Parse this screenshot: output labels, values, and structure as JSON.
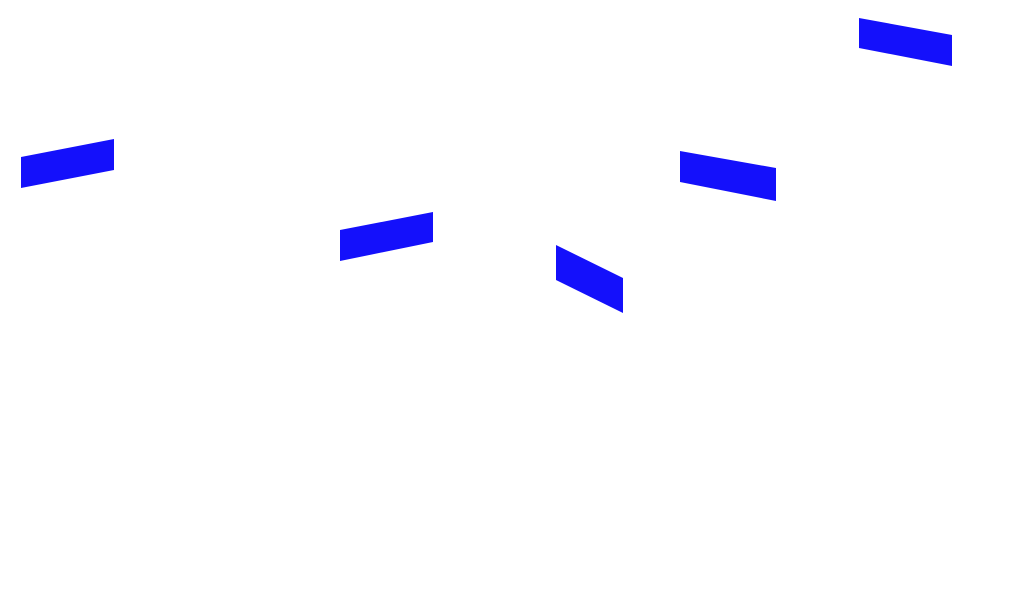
{
  "scene": {
    "background_color": "#ffffff",
    "shape_color": "#1410fb",
    "shape_kind": "parallelogram",
    "shape_count": 5
  }
}
